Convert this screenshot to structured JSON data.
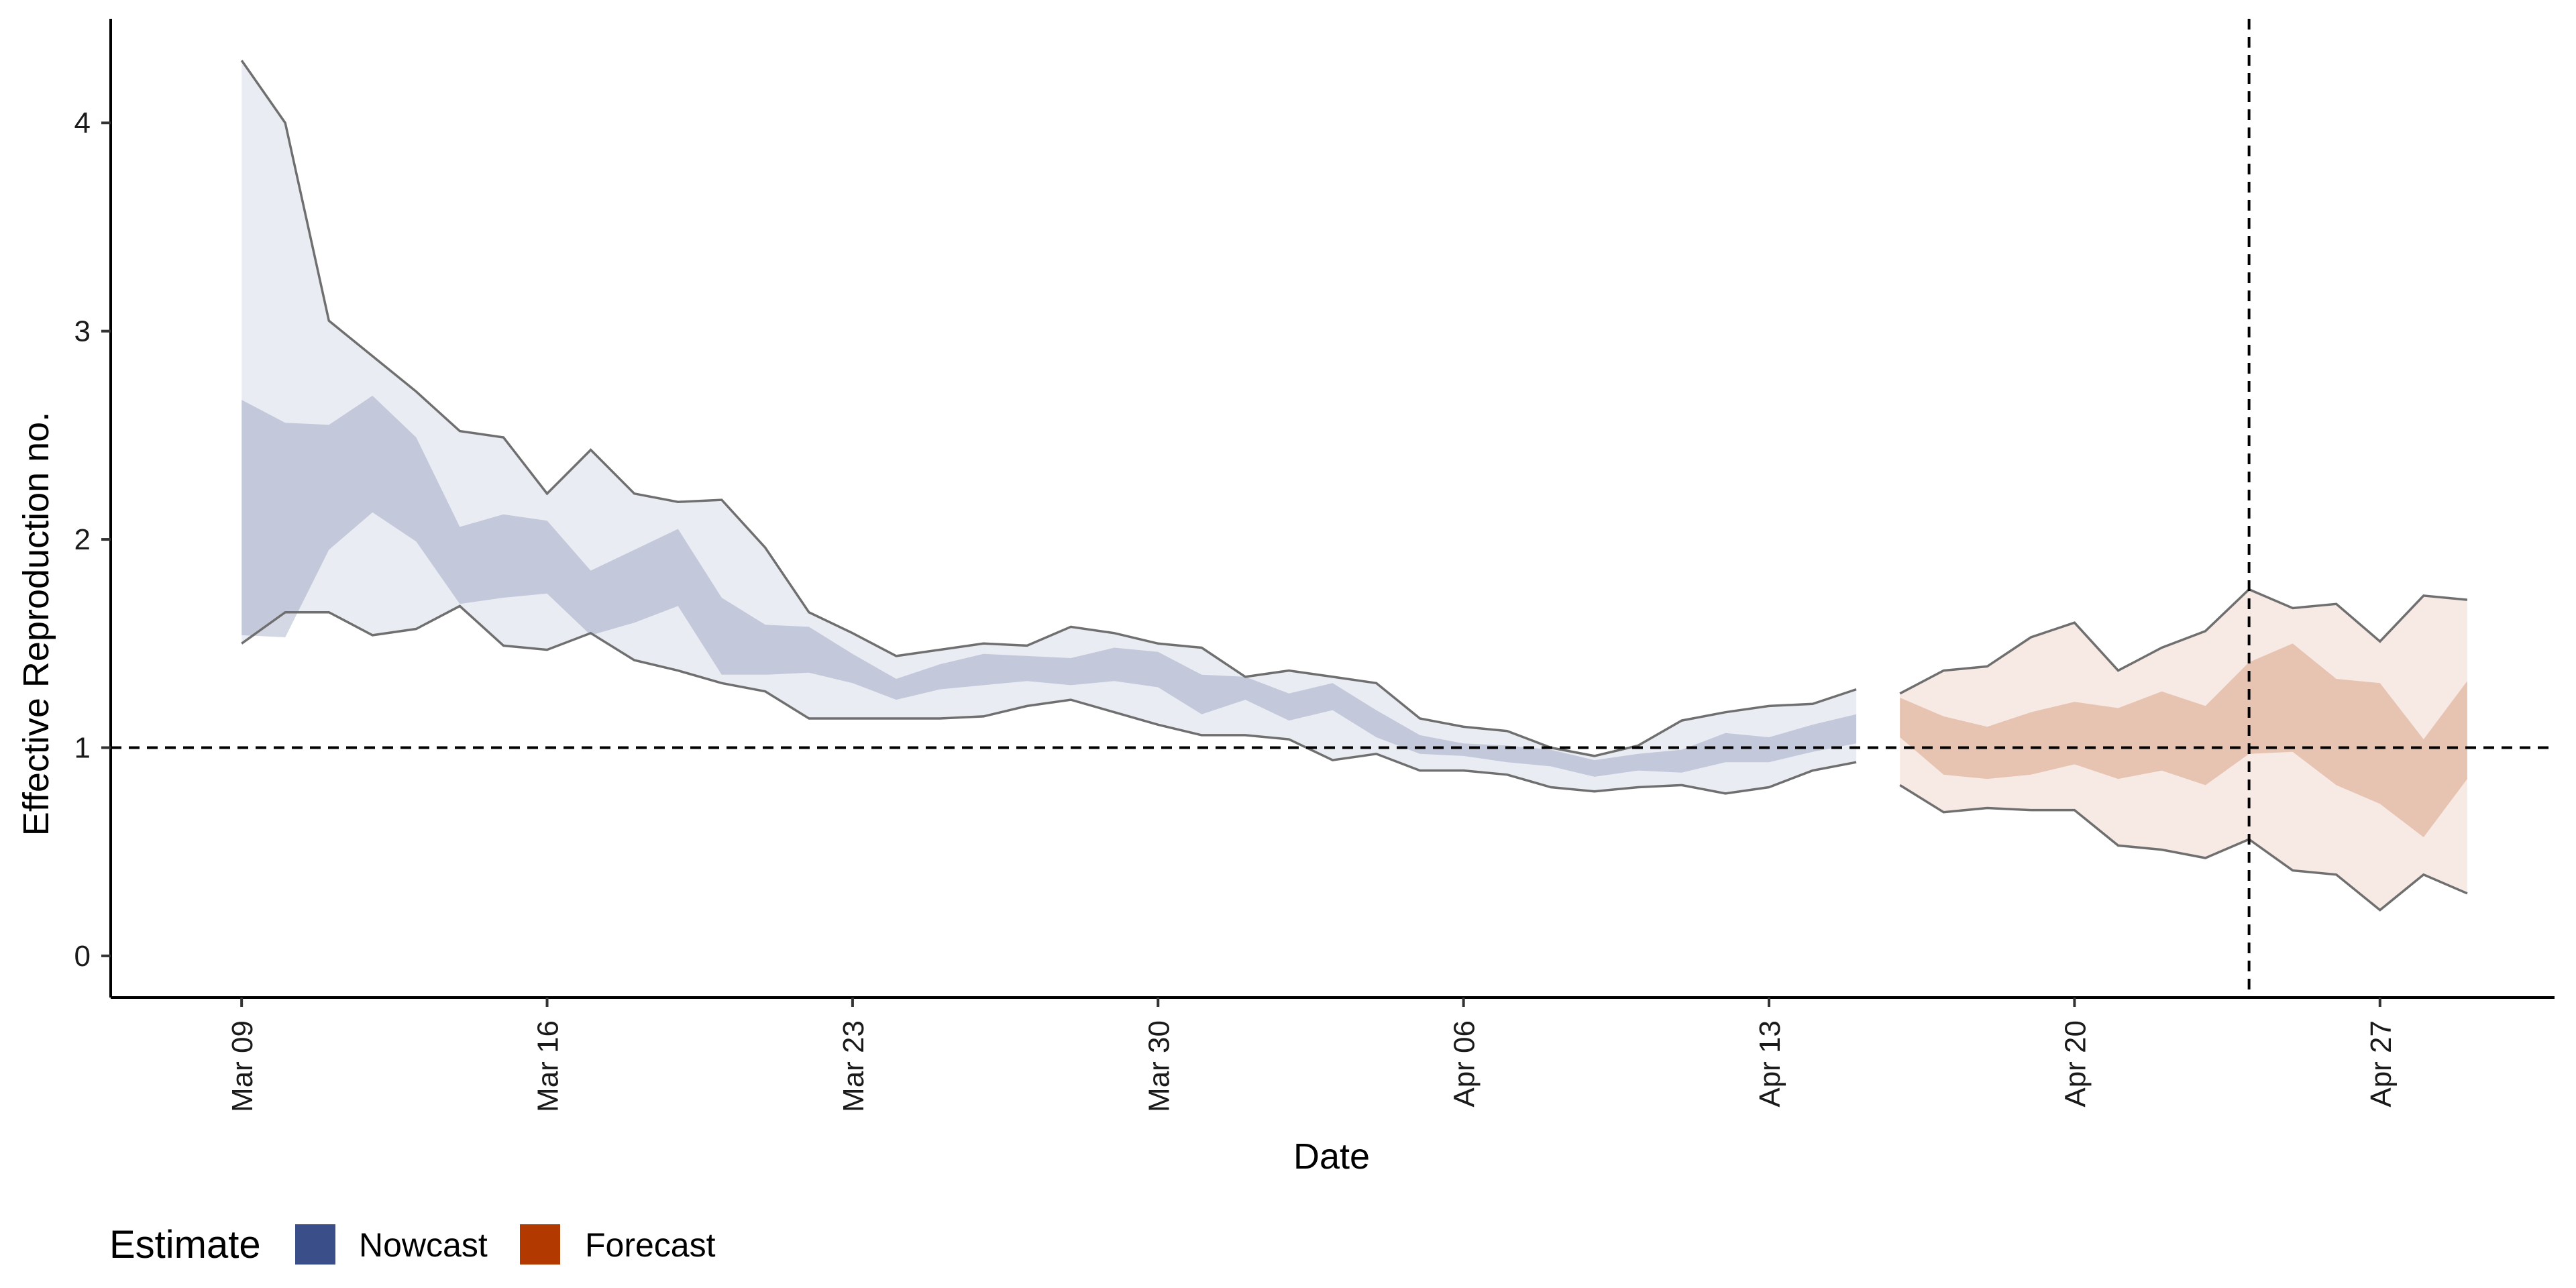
{
  "chart_data": {
    "type": "area",
    "xlabel": "Date",
    "ylabel": "Effective Reproduction no.",
    "x_range": [
      "2020-03-06",
      "2020-05-01"
    ],
    "ylim": [
      -0.2,
      4.5
    ],
    "x_ticks": [
      {
        "date": "2020-03-09",
        "label": "Mar 09"
      },
      {
        "date": "2020-03-16",
        "label": "Mar 16"
      },
      {
        "date": "2020-03-23",
        "label": "Mar 23"
      },
      {
        "date": "2020-03-30",
        "label": "Mar 30"
      },
      {
        "date": "2020-04-06",
        "label": "Apr 06"
      },
      {
        "date": "2020-04-13",
        "label": "Apr 13"
      },
      {
        "date": "2020-04-20",
        "label": "Apr 20"
      },
      {
        "date": "2020-04-27",
        "label": "Apr 27"
      }
    ],
    "y_ticks": [
      0,
      1,
      2,
      3,
      4
    ],
    "grid": false,
    "reference_lines": {
      "horizontal_y": 1,
      "vertical_x": "2020-04-24"
    },
    "legend": {
      "title": "Estimate",
      "position": "bottom-left"
    },
    "series": [
      {
        "name": "Nowcast",
        "color": "#3A4F8A",
        "start": "2020-03-09",
        "outer_upper": [
          4.3,
          4.0,
          3.05,
          2.88,
          2.71,
          2.52,
          2.49,
          2.22,
          2.43,
          2.22,
          2.18,
          2.19,
          1.96,
          1.65,
          1.55,
          1.44,
          1.47,
          1.5,
          1.49,
          1.58,
          1.55,
          1.5,
          1.48,
          1.34,
          1.37,
          1.34,
          1.31,
          1.14,
          1.1,
          1.08,
          1.0,
          0.96,
          1.01,
          1.13,
          1.17,
          1.2,
          1.21,
          1.28
        ],
        "outer_lower": [
          1.5,
          1.65,
          1.65,
          1.54,
          1.57,
          1.68,
          1.49,
          1.47,
          1.55,
          1.42,
          1.37,
          1.31,
          1.27,
          1.14,
          1.14,
          1.14,
          1.14,
          1.15,
          1.2,
          1.23,
          1.17,
          1.11,
          1.06,
          1.06,
          1.04,
          0.94,
          0.97,
          0.89,
          0.89,
          0.87,
          0.81,
          0.79,
          0.81,
          0.82,
          0.78,
          0.81,
          0.89,
          0.93
        ],
        "inner_upper": [
          2.67,
          2.56,
          2.55,
          2.69,
          2.49,
          2.06,
          2.12,
          2.09,
          1.85,
          1.95,
          2.05,
          1.72,
          1.59,
          1.58,
          1.45,
          1.33,
          1.4,
          1.45,
          1.44,
          1.43,
          1.48,
          1.46,
          1.35,
          1.34,
          1.26,
          1.31,
          1.18,
          1.06,
          1.02,
          1.01,
          0.99,
          0.94,
          0.97,
          0.99,
          1.07,
          1.05,
          1.11,
          1.16
        ],
        "inner_lower": [
          1.54,
          1.53,
          1.95,
          2.13,
          1.99,
          1.69,
          1.72,
          1.74,
          1.54,
          1.6,
          1.68,
          1.35,
          1.35,
          1.36,
          1.31,
          1.23,
          1.28,
          1.3,
          1.32,
          1.3,
          1.32,
          1.29,
          1.16,
          1.23,
          1.13,
          1.18,
          1.05,
          0.97,
          0.96,
          0.93,
          0.91,
          0.86,
          0.89,
          0.88,
          0.93,
          0.93,
          0.98,
          1.02
        ]
      },
      {
        "name": "Forecast",
        "color": "#B23A00",
        "start": "2020-04-16",
        "outer_upper": [
          1.26,
          1.37,
          1.39,
          1.53,
          1.6,
          1.37,
          1.48,
          1.56,
          1.76,
          1.67,
          1.69,
          1.51,
          1.73,
          1.71
        ],
        "outer_lower": [
          0.82,
          0.69,
          0.71,
          0.7,
          0.7,
          0.53,
          0.51,
          0.47,
          0.56,
          0.41,
          0.39,
          0.22,
          0.39,
          0.3
        ],
        "inner_upper": [
          1.24,
          1.15,
          1.1,
          1.17,
          1.22,
          1.19,
          1.27,
          1.2,
          1.41,
          1.5,
          1.33,
          1.31,
          1.04,
          1.32
        ],
        "inner_lower": [
          1.05,
          0.87,
          0.85,
          0.87,
          0.92,
          0.85,
          0.89,
          0.82,
          0.97,
          0.98,
          0.82,
          0.73,
          0.57,
          0.85
        ]
      }
    ]
  }
}
